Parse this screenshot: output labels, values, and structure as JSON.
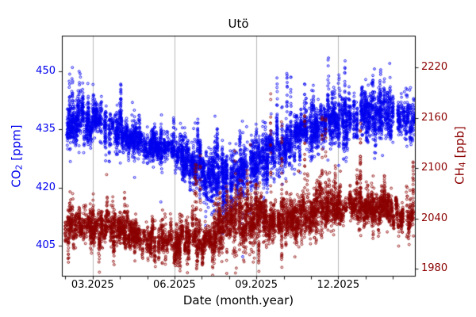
{
  "title": "Utö",
  "chart_data": {
    "type": "scatter",
    "title": "Utö",
    "xlabel": "Date (month.year)",
    "legend": "none",
    "marker": "open-circle",
    "background": "#ffffff",
    "x_axis": {
      "label": "Date (month.year)",
      "tick_labels": [
        "03.2025",
        "06.2025",
        "09.2025",
        "12.2025"
      ],
      "tick_positions_month": [
        3,
        6,
        9,
        12
      ],
      "minor_tick_months": [
        2,
        3,
        4,
        5,
        6,
        7,
        8,
        9,
        10,
        11,
        12,
        13,
        14
      ],
      "range_month": [
        1.874,
        14.81
      ],
      "grid": true,
      "grid_color": "#b0b0b0"
    },
    "left_axis": {
      "label_main": "CO",
      "label_sub": "2",
      "label_unit": " [ppm]",
      "color": "#0000ee",
      "ticks": [
        405,
        420,
        435,
        450
      ],
      "range": [
        397.25,
        459.2
      ]
    },
    "right_axis": {
      "label_main": "CH",
      "label_sub": "4",
      "label_unit": " [ppb]",
      "color": "#8b0000",
      "ticks": [
        1980,
        2040,
        2100,
        2160,
        2220
      ],
      "range": [
        1971.5,
        2257.8
      ]
    },
    "render_seed": 7,
    "series": [
      {
        "name": "CO2",
        "axis": "left",
        "color": "#0000ee",
        "unit": "ppm",
        "envelope": {
          "t": [
            2.0,
            3.0,
            4.0,
            5.0,
            6.0,
            7.0,
            8.0,
            9.0,
            10.0,
            11.0,
            12.0,
            13.0,
            14.0,
            14.9
          ],
          "center": [
            436,
            437,
            433.5,
            431.5,
            429,
            425.5,
            421.5,
            426.5,
            431,
            435,
            437,
            438.5,
            438,
            437
          ],
          "spread": [
            4,
            4,
            2.8,
            2.6,
            3,
            3.2,
            5,
            4.5,
            4,
            4,
            4,
            4,
            3.5,
            3.5
          ],
          "spike_up": [
            9,
            8,
            13,
            6,
            18,
            6,
            12,
            18,
            22,
            20,
            19,
            11,
            7,
            6
          ],
          "spike_down": [
            5,
            5,
            4,
            4,
            6,
            9,
            17,
            21,
            8,
            7,
            7,
            7,
            6,
            5
          ],
          "p_up": [
            0.07,
            0.07,
            0.05,
            0.05,
            0.05,
            0.04,
            0.08,
            0.12,
            0.12,
            0.1,
            0.08,
            0.06,
            0.05,
            0.04
          ],
          "p_down": [
            0.02,
            0.02,
            0.02,
            0.03,
            0.04,
            0.1,
            0.12,
            0.1,
            0.05,
            0.03,
            0.02,
            0.02,
            0.02,
            0.02
          ]
        }
      },
      {
        "name": "CH4",
        "axis": "right",
        "color": "#8b0000",
        "unit": "ppb",
        "envelope": {
          "t": [
            2.0,
            3.0,
            4.0,
            5.0,
            6.0,
            7.0,
            8.0,
            9.0,
            10.0,
            11.0,
            12.0,
            13.0,
            14.0,
            14.9
          ],
          "center": [
            2032,
            2030,
            2024,
            2017,
            2010,
            2014,
            2032,
            2046,
            2040,
            2048,
            2050,
            2052,
            2048,
            2045
          ],
          "spread": [
            16,
            14,
            12,
            13,
            12,
            14,
            20,
            22,
            16,
            16,
            16,
            16,
            14,
            13
          ],
          "spike_up": [
            90,
            85,
            50,
            62,
            50,
            130,
            125,
            190,
            140,
            135,
            130,
            90,
            80,
            60
          ],
          "spike_down": [
            25,
            25,
            22,
            28,
            28,
            28,
            45,
            60,
            40,
            30,
            30,
            30,
            25,
            22
          ],
          "p_up": [
            0.1,
            0.08,
            0.06,
            0.06,
            0.05,
            0.08,
            0.12,
            0.15,
            0.1,
            0.1,
            0.1,
            0.08,
            0.07,
            0.06
          ],
          "p_down": [
            0.03,
            0.03,
            0.04,
            0.05,
            0.08,
            0.08,
            0.1,
            0.1,
            0.06,
            0.04,
            0.04,
            0.04,
            0.03,
            0.03
          ]
        }
      }
    ]
  }
}
